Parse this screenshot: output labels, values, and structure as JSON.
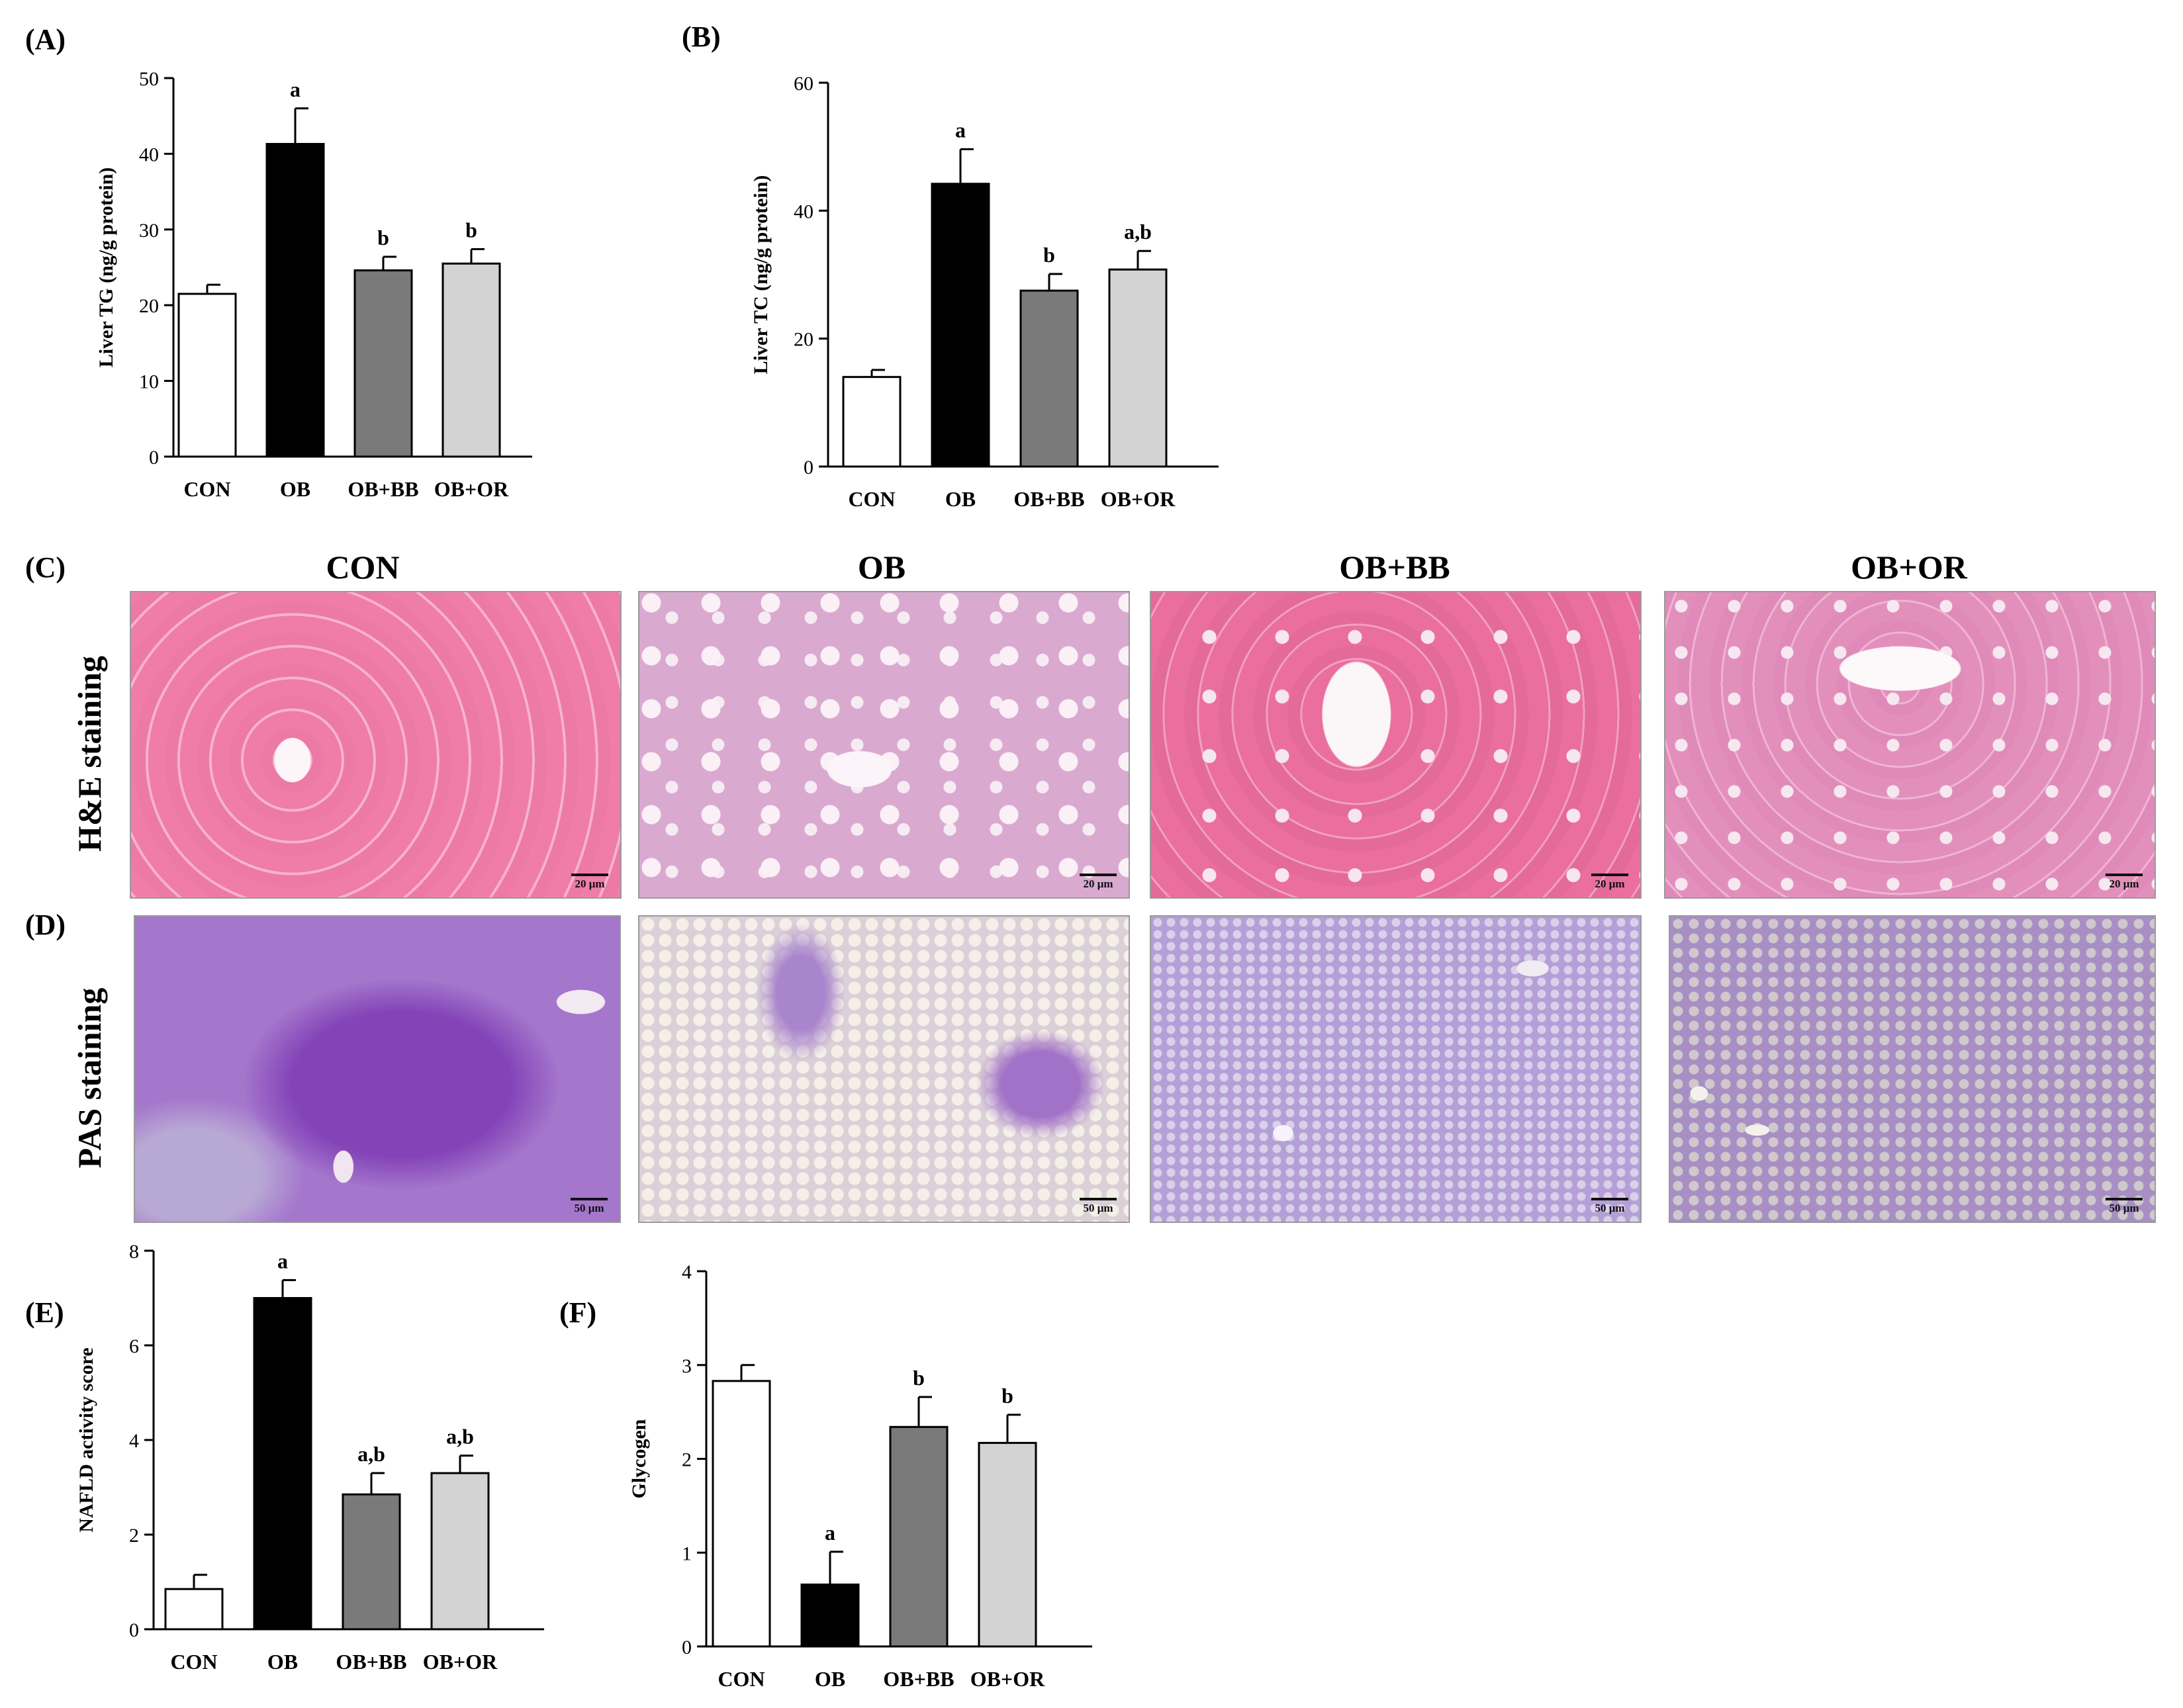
{
  "panels": {
    "A": "(A)",
    "B": "(B)",
    "C": "(C)",
    "D": "(D)",
    "E": "(E)",
    "F": "(F)"
  },
  "columns": [
    "CON",
    "OB",
    "OB+BB",
    "OB+OR"
  ],
  "rows": [
    "H&E staining",
    "PAS staining"
  ],
  "he_scale": "20 μm",
  "pas_scale": "50 μm",
  "colors": {
    "CON": "#ffffff",
    "OB": "#000000",
    "OB+BB": "#7a7a7a",
    "OB+OR": "#d3d3d3",
    "he_bg": "#e98fb8",
    "he_bg_ob": "#dcb0d4",
    "pas_bg": "#9a74c6",
    "pas_bg_light": "#c8bedb"
  },
  "chart_data": [
    {
      "id": "A",
      "type": "bar",
      "categories": [
        "CON",
        "OB",
        "OB+BB",
        "OB+OR"
      ],
      "values": [
        21.5,
        41.3,
        24.6,
        25.5
      ],
      "errors": [
        1.2,
        4.7,
        1.8,
        1.9
      ],
      "labels": [
        "",
        "a",
        "b",
        "b"
      ],
      "ylabel": "Liver TG (ng/g protein)",
      "ylim": [
        0,
        50
      ],
      "yticks": [
        0,
        10,
        20,
        30,
        40,
        50
      ]
    },
    {
      "id": "B",
      "type": "bar",
      "categories": [
        "CON",
        "OB",
        "OB+BB",
        "OB+OR"
      ],
      "values": [
        14.0,
        44.2,
        27.5,
        30.8
      ],
      "errors": [
        1.1,
        5.4,
        2.6,
        2.9
      ],
      "labels": [
        "",
        "a",
        "b",
        "a,b"
      ],
      "ylabel": "Liver TC (ng/g protein)",
      "ylim": [
        0,
        60
      ],
      "yticks": [
        0,
        20,
        40,
        60
      ]
    },
    {
      "id": "E",
      "type": "bar",
      "categories": [
        "CON",
        "OB",
        "OB+BB",
        "OB+OR"
      ],
      "values": [
        0.85,
        7.0,
        2.85,
        3.3
      ],
      "errors": [
        0.3,
        0.38,
        0.45,
        0.37
      ],
      "labels": [
        "",
        "a",
        "a,b",
        "a,b"
      ],
      "ylabel": "NAFLD activity score",
      "ylim": [
        0,
        8
      ],
      "yticks": [
        0,
        2,
        4,
        6,
        8
      ]
    },
    {
      "id": "F",
      "type": "bar",
      "categories": [
        "CON",
        "OB",
        "OB+BB",
        "OB+OR"
      ],
      "values": [
        2.83,
        0.66,
        2.34,
        2.17
      ],
      "errors": [
        0.17,
        0.35,
        0.32,
        0.3
      ],
      "labels": [
        "",
        "a",
        "b",
        "b"
      ],
      "ylabel": "Glycogen",
      "ylim": [
        0,
        4
      ],
      "yticks": [
        0,
        1,
        2,
        3,
        4
      ]
    }
  ]
}
